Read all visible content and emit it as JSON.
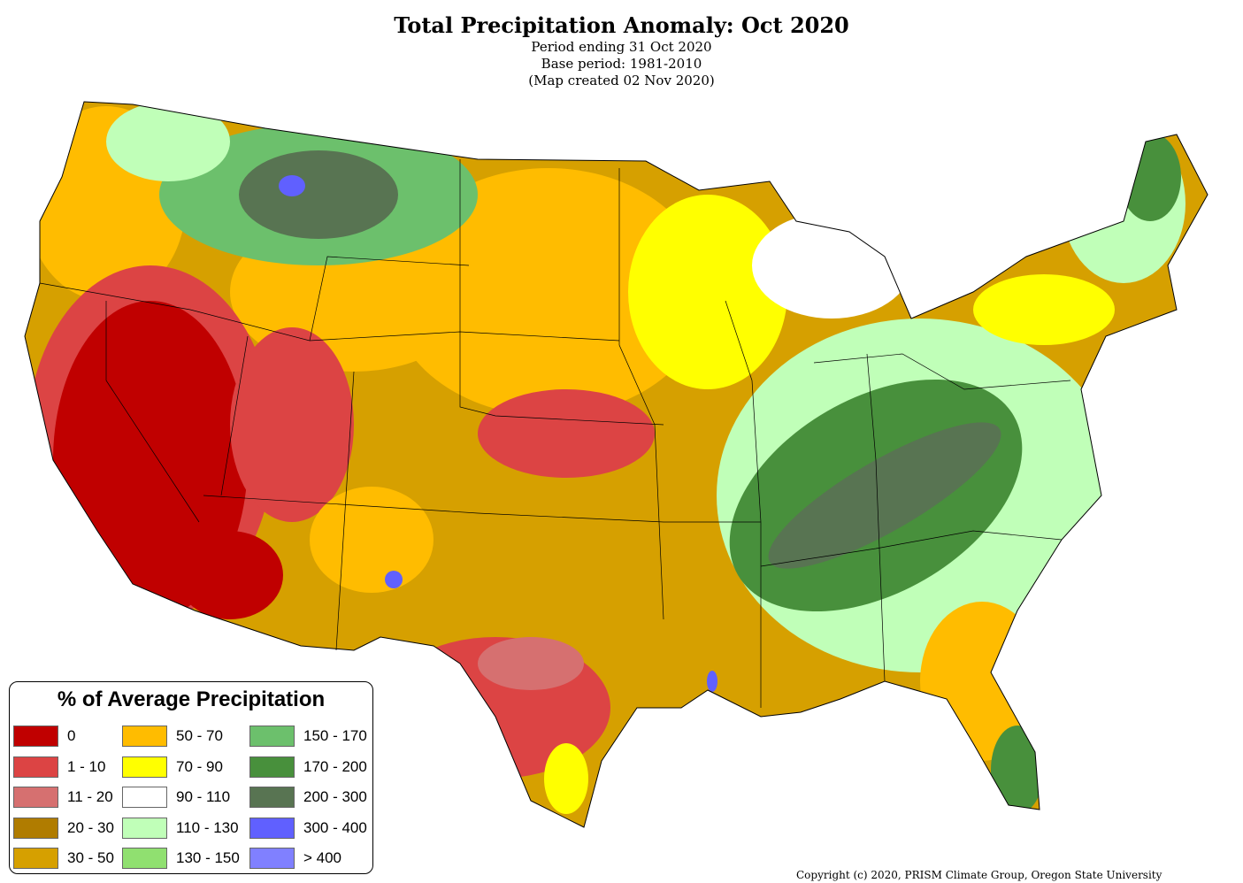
{
  "header": {
    "title": "Total Precipitation Anomaly: Oct 2020",
    "period": "Period ending 31 Oct 2020",
    "base": "Base period: 1981-2010",
    "created": "(Map created 02 Nov 2020)"
  },
  "legend": {
    "title": "% of Average Precipitation",
    "items": [
      {
        "label": "0",
        "color": "#c00000"
      },
      {
        "label": "1 - 10",
        "color": "#dc4444"
      },
      {
        "label": "11 - 20",
        "color": "#d67070"
      },
      {
        "label": "20 - 30",
        "color": "#b07c00"
      },
      {
        "label": "30 - 50",
        "color": "#d6a000"
      },
      {
        "label": "50 - 70",
        "color": "#ffbc00"
      },
      {
        "label": "70 - 90",
        "color": "#ffff00"
      },
      {
        "label": "90 - 110",
        "color": "#ffffff"
      },
      {
        "label": "110 - 130",
        "color": "#c0ffb8"
      },
      {
        "label": "130 - 150",
        "color": "#90e070"
      },
      {
        "label": "150 - 170",
        "color": "#6cc06c"
      },
      {
        "label": "170 - 200",
        "color": "#48903c"
      },
      {
        "label": "200 - 300",
        "color": "#587452"
      },
      {
        "label": "300 - 400",
        "color": "#6060ff"
      },
      {
        "label": "> 400",
        "color": "#8080ff"
      }
    ]
  },
  "copyright": "Copyright (c) 2020, PRISM Climate Group, Oregon State University"
}
